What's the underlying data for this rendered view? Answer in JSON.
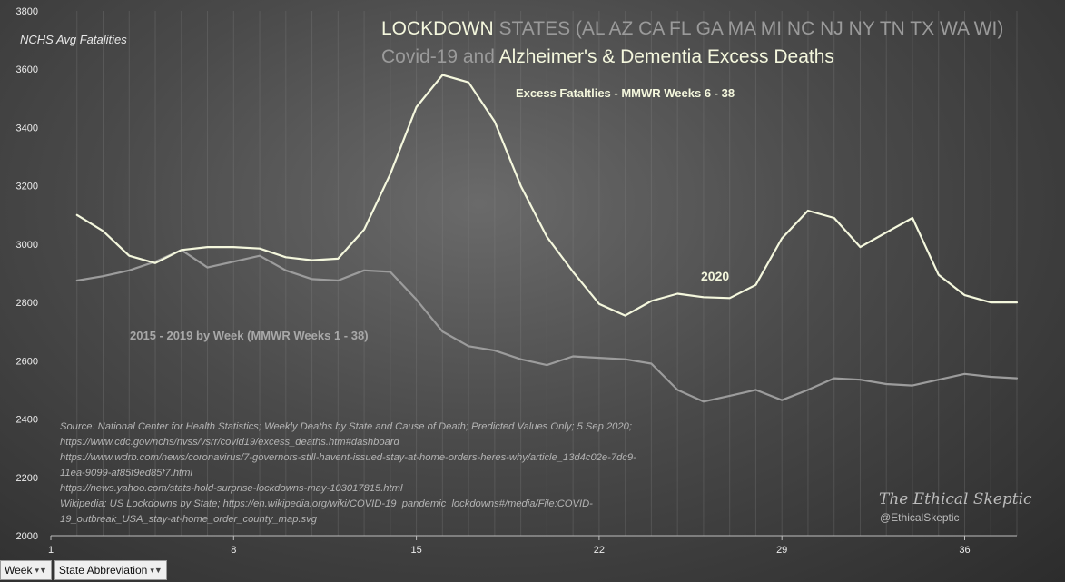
{
  "chart_data": {
    "type": "line",
    "title_line1": {
      "highlight": "LOCKDOWN",
      "rest": " STATES (AL AZ CA FL GA MA MI NC NJ NY TN TX WA WI)"
    },
    "title_line2": {
      "dim": "Covid-19 and ",
      "highlight": "Alzheimer's & Dementia Excess Deaths"
    },
    "subtitle": "Excess Fataltlies - MMWR Weeks 6 - 38",
    "ylabel": "NCHS Avg Fatalities",
    "ylim": [
      2000,
      3800
    ],
    "y_ticks": [
      "2000",
      "2200",
      "2400",
      "2600",
      "2800",
      "3000",
      "3200",
      "3400",
      "3600",
      "3800"
    ],
    "xlim": [
      1,
      38
    ],
    "x_ticks": [
      "1",
      "8",
      "15",
      "22",
      "29",
      "36"
    ],
    "x_tick_values": [
      1,
      8,
      15,
      22,
      29,
      36
    ],
    "series": [
      {
        "name": "2020",
        "label": "2020",
        "color": "#f4f7dd",
        "x": [
          2,
          3,
          4,
          5,
          6,
          7,
          8,
          9,
          10,
          11,
          12,
          13,
          14,
          15,
          16,
          17,
          18,
          19,
          20,
          21,
          22,
          23,
          24,
          25,
          26,
          27,
          28,
          29,
          30,
          31,
          32,
          33,
          34,
          35,
          36,
          37,
          38
        ],
        "values": [
          3100,
          3045,
          2960,
          2935,
          2980,
          2990,
          2990,
          2985,
          2955,
          2945,
          2950,
          3050,
          3240,
          3470,
          3580,
          3555,
          3420,
          3200,
          3025,
          2905,
          2795,
          2755,
          2805,
          2830,
          2818,
          2815,
          2860,
          3020,
          3115,
          3090,
          2990,
          3040,
          3090,
          2895,
          2825,
          2800,
          2800
        ]
      },
      {
        "name": "2015 - 2019",
        "label": "2015  - 2019  by Week (MMWR Weeks 1 - 38)",
        "color": "#9c9c9c",
        "x": [
          2,
          3,
          4,
          5,
          6,
          7,
          8,
          9,
          10,
          11,
          12,
          13,
          14,
          15,
          16,
          17,
          18,
          19,
          20,
          21,
          22,
          23,
          24,
          25,
          26,
          27,
          28,
          29,
          30,
          31,
          32,
          33,
          34,
          35,
          36,
          37,
          38
        ],
        "values": [
          2875,
          2890,
          2910,
          2940,
          2980,
          2920,
          2940,
          2960,
          2910,
          2880,
          2875,
          2910,
          2905,
          2810,
          2700,
          2650,
          2635,
          2605,
          2585,
          2615,
          2610,
          2605,
          2590,
          2500,
          2460,
          2480,
          2500,
          2465,
          2500,
          2540,
          2535,
          2520,
          2515,
          2535,
          2555,
          2545,
          2540
        ]
      }
    ],
    "source_lines": [
      "Source:  National Center for Health Statistics;  Weekly Deaths by State and Cause of Death; Predicted Values Only; 5 Sep 2020;",
      "https://www.cdc.gov/nchs/nvss/vsrr/covid19/excess_deaths.htm#dashboard",
      "https://www.wdrb.com/news/coronavirus/7-governors-still-havent-issued-stay-at-home-orders-heres-why/article_13d4c02e-7dc9-",
      "11ea-9099-af85f9ed85f7.html",
      "https://news.yahoo.com/stats-hold-surprise-lockdowns-may-103017815.html",
      "Wikipedia: US Lockdowns  by State;  https://en.wikipedia.org/wiki/COVID-19_pandemic_lockdowns#/media/File:COVID-",
      "19_outbreak_USA_stay-at-home_order_county_map.svg"
    ],
    "brand": "The Ethical Skeptic",
    "handle": "@EthicalSkeptic"
  },
  "filters": [
    {
      "label": "Week",
      "icon": "filter-dropdown-icon"
    },
    {
      "label": "State Abbreviation",
      "icon": "filter-dropdown-icon"
    }
  ]
}
